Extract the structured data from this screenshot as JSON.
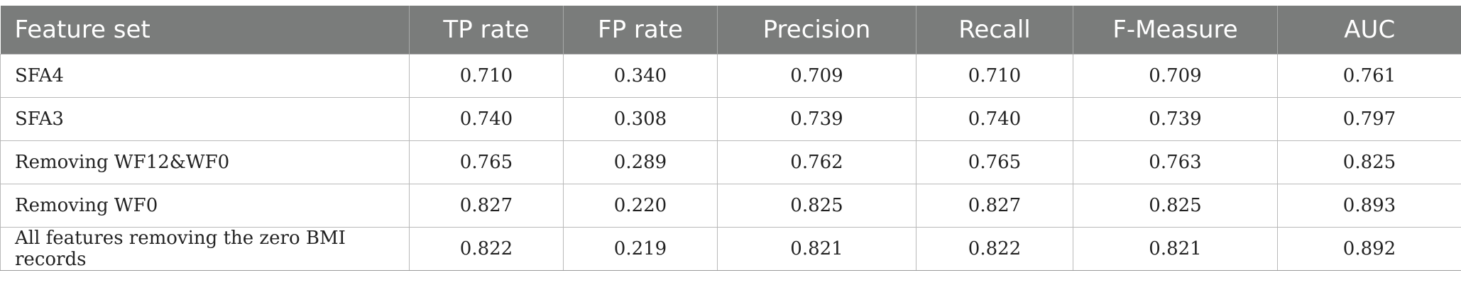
{
  "table": {
    "headers": [
      "Feature set",
      "TP rate",
      "FP rate",
      "Precision",
      "Recall",
      "F-Measure",
      "AUC"
    ],
    "rows": [
      [
        "SFA4",
        "0.710",
        "0.340",
        "0.709",
        "0.710",
        "0.709",
        "0.761"
      ],
      [
        "SFA3",
        "0.740",
        "0.308",
        "0.739",
        "0.740",
        "0.739",
        "0.797"
      ],
      [
        "Removing WF12&WF0",
        "0.765",
        "0.289",
        "0.762",
        "0.765",
        "0.763",
        "0.825"
      ],
      [
        "Removing WF0",
        "0.827",
        "0.220",
        "0.825",
        "0.827",
        "0.825",
        "0.893"
      ],
      [
        "All features removing the zero BMI records",
        "0.822",
        "0.219",
        "0.821",
        "0.822",
        "0.821",
        "0.892"
      ]
    ]
  },
  "colors": {
    "header_bg": "#7a7c7b",
    "header_text": "#ffffff",
    "grid": "#b9b9b9"
  }
}
